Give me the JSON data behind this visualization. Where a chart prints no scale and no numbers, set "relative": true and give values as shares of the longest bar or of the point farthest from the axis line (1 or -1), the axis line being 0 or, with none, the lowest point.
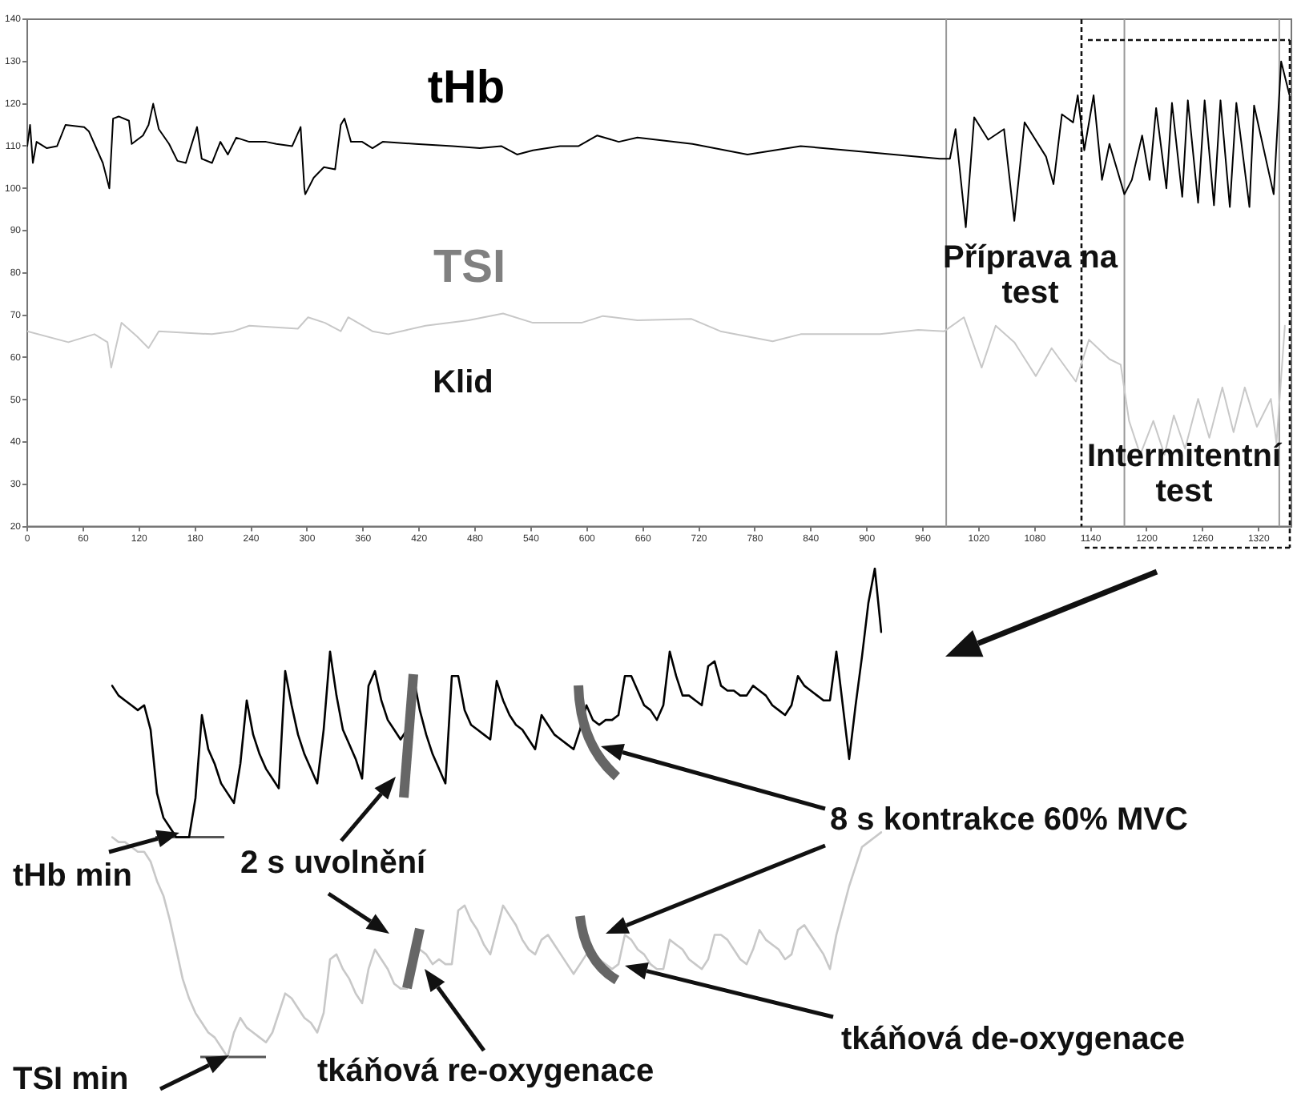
{
  "chart_data": [
    {
      "type": "line",
      "annotations": [
        "Klid",
        "Příprava na test",
        "Intermitentní test"
      ],
      "xlim": [
        0,
        1355
      ],
      "xticks": [
        0,
        60,
        120,
        180,
        240,
        300,
        360,
        420,
        480,
        540,
        600,
        660,
        720,
        780,
        840,
        900,
        960,
        1020,
        1080,
        1140,
        1200,
        1260,
        1320
      ],
      "ylim": [
        20,
        140
      ],
      "yticks": [
        20,
        30,
        40,
        50,
        60,
        70,
        80,
        90,
        100,
        110,
        120,
        130,
        140
      ],
      "grid": false,
      "legend": false,
      "marker": "none",
      "ref_lines": [
        {
          "axis": "x",
          "value": 985,
          "color": "#999999"
        },
        {
          "axis": "x",
          "value": 1176,
          "color": "#999999"
        },
        {
          "axis": "x",
          "value": 1342,
          "color": "#999999"
        },
        {
          "axis": "x",
          "value": 1130,
          "color": "#111111",
          "line_style": "dashed"
        }
      ],
      "series": [
        {
          "name": "tHb",
          "color": "#000000",
          "x": [
            0,
            3,
            6,
            10,
            21,
            32,
            41,
            61,
            66,
            72,
            81,
            88,
            92,
            98,
            109,
            112,
            124,
            130,
            135,
            141,
            152,
            161,
            170,
            182,
            187,
            198,
            207,
            215,
            224,
            238,
            256,
            267,
            284,
            293,
            297,
            298,
            307,
            318,
            330,
            336,
            340,
            347,
            359,
            370,
            381,
            416,
            456,
            485,
            508,
            525,
            542,
            571,
            591,
            611,
            634,
            654,
            713,
            772,
            829,
            903,
            978,
            989,
            995,
            1006,
            1015,
            1030,
            1047,
            1058,
            1069,
            1092,
            1100,
            1109,
            1121,
            1126,
            1133,
            1143,
            1152,
            1160,
            1176,
            1184,
            1195,
            1203,
            1210,
            1221,
            1227,
            1238,
            1244,
            1255,
            1262,
            1272,
            1279,
            1289,
            1296,
            1310,
            1315,
            1336,
            1344,
            1353
          ],
          "values": [
            110,
            115,
            106,
            111,
            109.5,
            110,
            115,
            114.5,
            113.5,
            110.5,
            106,
            100,
            116.5,
            117,
            116,
            110.5,
            112.5,
            115,
            120,
            114,
            110.5,
            106.5,
            106,
            114.5,
            107,
            106,
            111,
            108,
            112,
            111,
            111,
            110.5,
            110,
            114.5,
            100,
            98.6,
            102.5,
            105,
            104.5,
            115,
            116.5,
            111,
            111,
            109.5,
            111,
            110.5,
            110,
            109.5,
            110,
            108,
            109,
            110,
            110,
            112.5,
            111,
            112,
            110.5,
            108,
            110,
            108.5,
            107,
            107,
            114,
            90.8,
            116.8,
            111.5,
            114,
            92.3,
            115.6,
            107.5,
            101,
            117.5,
            115.6,
            122,
            109,
            122,
            102,
            110.5,
            98.6,
            102,
            112.5,
            102,
            119,
            100,
            120.2,
            98,
            120.8,
            96.6,
            120.8,
            96,
            120.8,
            95.6,
            120.2,
            95.6,
            119.6,
            98.6,
            130,
            122
          ]
        },
        {
          "name": "TSI",
          "color": "#c8c8c8",
          "x": [
            0,
            44,
            72,
            86,
            90,
            101,
            118,
            130,
            141,
            198,
            221,
            238,
            290,
            301,
            319,
            336,
            344,
            370,
            387,
            427,
            473,
            510,
            542,
            594,
            617,
            654,
            712,
            743,
            799,
            829,
            914,
            955,
            983,
            1004,
            1023,
            1038,
            1058,
            1081,
            1098,
            1124,
            1138,
            1160,
            1172,
            1181,
            1193,
            1207,
            1219,
            1229,
            1241,
            1255,
            1267,
            1281,
            1293,
            1305,
            1318,
            1333,
            1339,
            1348
          ],
          "values": [
            66.2,
            63.6,
            65.5,
            63.6,
            57.6,
            68.2,
            64.9,
            62.2,
            66.2,
            65.5,
            66.2,
            67.5,
            66.8,
            69.5,
            68.2,
            66.2,
            69.5,
            66.2,
            65.5,
            67.5,
            68.8,
            70.4,
            68.2,
            68.2,
            69.8,
            68.8,
            69.1,
            66.2,
            63.8,
            65.5,
            65.5,
            66.5,
            66.2,
            69.5,
            57.6,
            67.5,
            63.6,
            55.6,
            62.2,
            54.3,
            64.2,
            59.6,
            58.3,
            45,
            37,
            45,
            37,
            46.3,
            38.4,
            50.2,
            41,
            52.9,
            42.3,
            52.9,
            43.6,
            50.2,
            39.7,
            67.5
          ]
        }
      ]
    },
    {
      "type": "line",
      "relative": true,
      "legend": false,
      "marker": "none",
      "ref_lines": [
        {
          "axis": "y",
          "value": 0.45,
          "color": "#555555"
        },
        {
          "axis": "y",
          "value": 0,
          "color": "#555555"
        }
      ],
      "annotations": [
        "tHb min",
        "TSI min",
        "2 s uvolnění",
        "8 s kontrakce 60% MVC",
        "tkáňová re-oxygenace",
        "tkáňová de-oxygenace"
      ],
      "categories": [
        null,
        null,
        null,
        null,
        null,
        null,
        null,
        null,
        null,
        null,
        null,
        null,
        null,
        null,
        null,
        null,
        null,
        null,
        null,
        null,
        null,
        null,
        null,
        null,
        null,
        null,
        null,
        null,
        null,
        null,
        null,
        null,
        null,
        null,
        null,
        null,
        null,
        null,
        null,
        null,
        null,
        null,
        null,
        null,
        null,
        null,
        null,
        null,
        null,
        null,
        null,
        null,
        null,
        null,
        null,
        null,
        null,
        null,
        null,
        null,
        null,
        null,
        null,
        null,
        null,
        null,
        null,
        null,
        null,
        null,
        null,
        null,
        null,
        null,
        null,
        null,
        null,
        null,
        null,
        null,
        null,
        null,
        null,
        null,
        null,
        null,
        null,
        null,
        null,
        null,
        null,
        null,
        null,
        null,
        null,
        null,
        null,
        null,
        null,
        null,
        null,
        null,
        null,
        null,
        null,
        null,
        null,
        null,
        null,
        null,
        null,
        null,
        null,
        null,
        null,
        null,
        null,
        null,
        null,
        null,
        null
      ],
      "series": [
        {
          "color": "#000000",
          "values": [
            0.76,
            0.74,
            0.73,
            0.72,
            0.71,
            0.72,
            0.67,
            0.54,
            0.49,
            0.47,
            0.45,
            0.45,
            0.45,
            0.53,
            0.7,
            0.63,
            0.6,
            0.56,
            0.54,
            0.52,
            0.6,
            0.73,
            0.66,
            0.62,
            0.59,
            0.57,
            0.55,
            0.79,
            0.72,
            0.66,
            0.62,
            0.59,
            0.56,
            0.67,
            0.83,
            0.74,
            0.67,
            0.64,
            0.61,
            0.57,
            0.76,
            0.79,
            0.73,
            0.69,
            0.67,
            0.65,
            0.67,
            0.78,
            0.71,
            0.66,
            0.62,
            0.59,
            0.56,
            0.78,
            0.78,
            0.71,
            0.68,
            0.67,
            0.66,
            0.65,
            0.77,
            0.73,
            0.7,
            0.68,
            0.67,
            0.65,
            0.63,
            0.7,
            0.68,
            0.66,
            0.65,
            0.64,
            0.63,
            0.67,
            0.72,
            0.69,
            0.68,
            0.69,
            0.69,
            0.7,
            0.78,
            0.78,
            0.75,
            0.72,
            0.71,
            0.69,
            0.72,
            0.83,
            0.78,
            0.74,
            0.74,
            0.73,
            0.72,
            0.8,
            0.81,
            0.76,
            0.75,
            0.75,
            0.74,
            0.74,
            0.76,
            0.75,
            0.74,
            0.72,
            0.71,
            0.7,
            0.72,
            0.78,
            0.76,
            0.75,
            0.74,
            0.73,
            0.73,
            0.83,
            0.72,
            0.61,
            0.72,
            0.82,
            0.93,
            1,
            0.87
          ]
        },
        {
          "color": "#c8c8c8",
          "values": [
            0.45,
            0.44,
            0.44,
            0.43,
            0.42,
            0.42,
            0.4,
            0.36,
            0.33,
            0.28,
            0.22,
            0.16,
            0.12,
            0.09,
            0.07,
            0.05,
            0.04,
            0.02,
            0,
            0.05,
            0.08,
            0.06,
            0.05,
            0.04,
            0.03,
            0.05,
            0.09,
            0.13,
            0.12,
            0.1,
            0.08,
            0.07,
            0.05,
            0.09,
            0.2,
            0.21,
            0.18,
            0.16,
            0.13,
            0.11,
            0.18,
            0.22,
            0.2,
            0.18,
            0.15,
            0.14,
            0.14,
            0.19,
            0.22,
            0.21,
            0.19,
            0.2,
            0.19,
            0.19,
            0.3,
            0.31,
            0.28,
            0.26,
            0.23,
            0.21,
            0.26,
            0.31,
            0.29,
            0.27,
            0.24,
            0.22,
            0.21,
            0.24,
            0.25,
            0.23,
            0.21,
            0.19,
            0.17,
            0.19,
            0.21,
            0.21,
            0.2,
            0.19,
            0.18,
            0.19,
            0.25,
            0.24,
            0.22,
            0.21,
            0.19,
            0.18,
            0.18,
            0.24,
            0.23,
            0.22,
            0.2,
            0.19,
            0.18,
            0.2,
            0.25,
            0.25,
            0.24,
            0.22,
            0.2,
            0.19,
            0.22,
            0.26,
            0.24,
            0.23,
            0.22,
            0.2,
            0.21,
            0.26,
            0.27,
            0.25,
            0.23,
            0.21,
            0.18,
            0.25,
            0.3,
            0.35,
            0.39,
            0.43,
            0.44,
            0.45,
            0.46
          ]
        }
      ]
    }
  ]
}
